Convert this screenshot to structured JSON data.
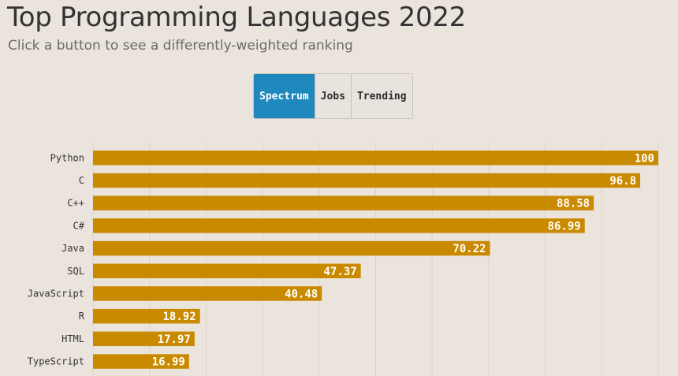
{
  "header": {
    "title": "Top Programming Languages 2022",
    "subtitle": "Click a button to see a differently-weighted ranking"
  },
  "controls": {
    "buttons": [
      {
        "label": "Spectrum",
        "active": true
      },
      {
        "label": "Jobs",
        "active": false
      },
      {
        "label": "Trending",
        "active": false
      }
    ]
  },
  "colors": {
    "bar": "#c98a00",
    "active_button": "#1f88bd",
    "background": "#ebe4dc"
  },
  "chart_data": {
    "type": "bar",
    "orientation": "horizontal",
    "categories": [
      "Python",
      "C",
      "C++",
      "C#",
      "Java",
      "SQL",
      "JavaScript",
      "R",
      "HTML",
      "TypeScript"
    ],
    "values": [
      100,
      96.8,
      88.58,
      86.99,
      70.22,
      47.37,
      40.48,
      18.92,
      17.97,
      16.99
    ],
    "value_labels": [
      "100",
      "96.8",
      "88.58",
      "86.99",
      "70.22",
      "47.37",
      "40.48",
      "18.92",
      "17.97",
      "16.99"
    ],
    "xlim": [
      0,
      100
    ],
    "grid": true,
    "legend": "none"
  }
}
